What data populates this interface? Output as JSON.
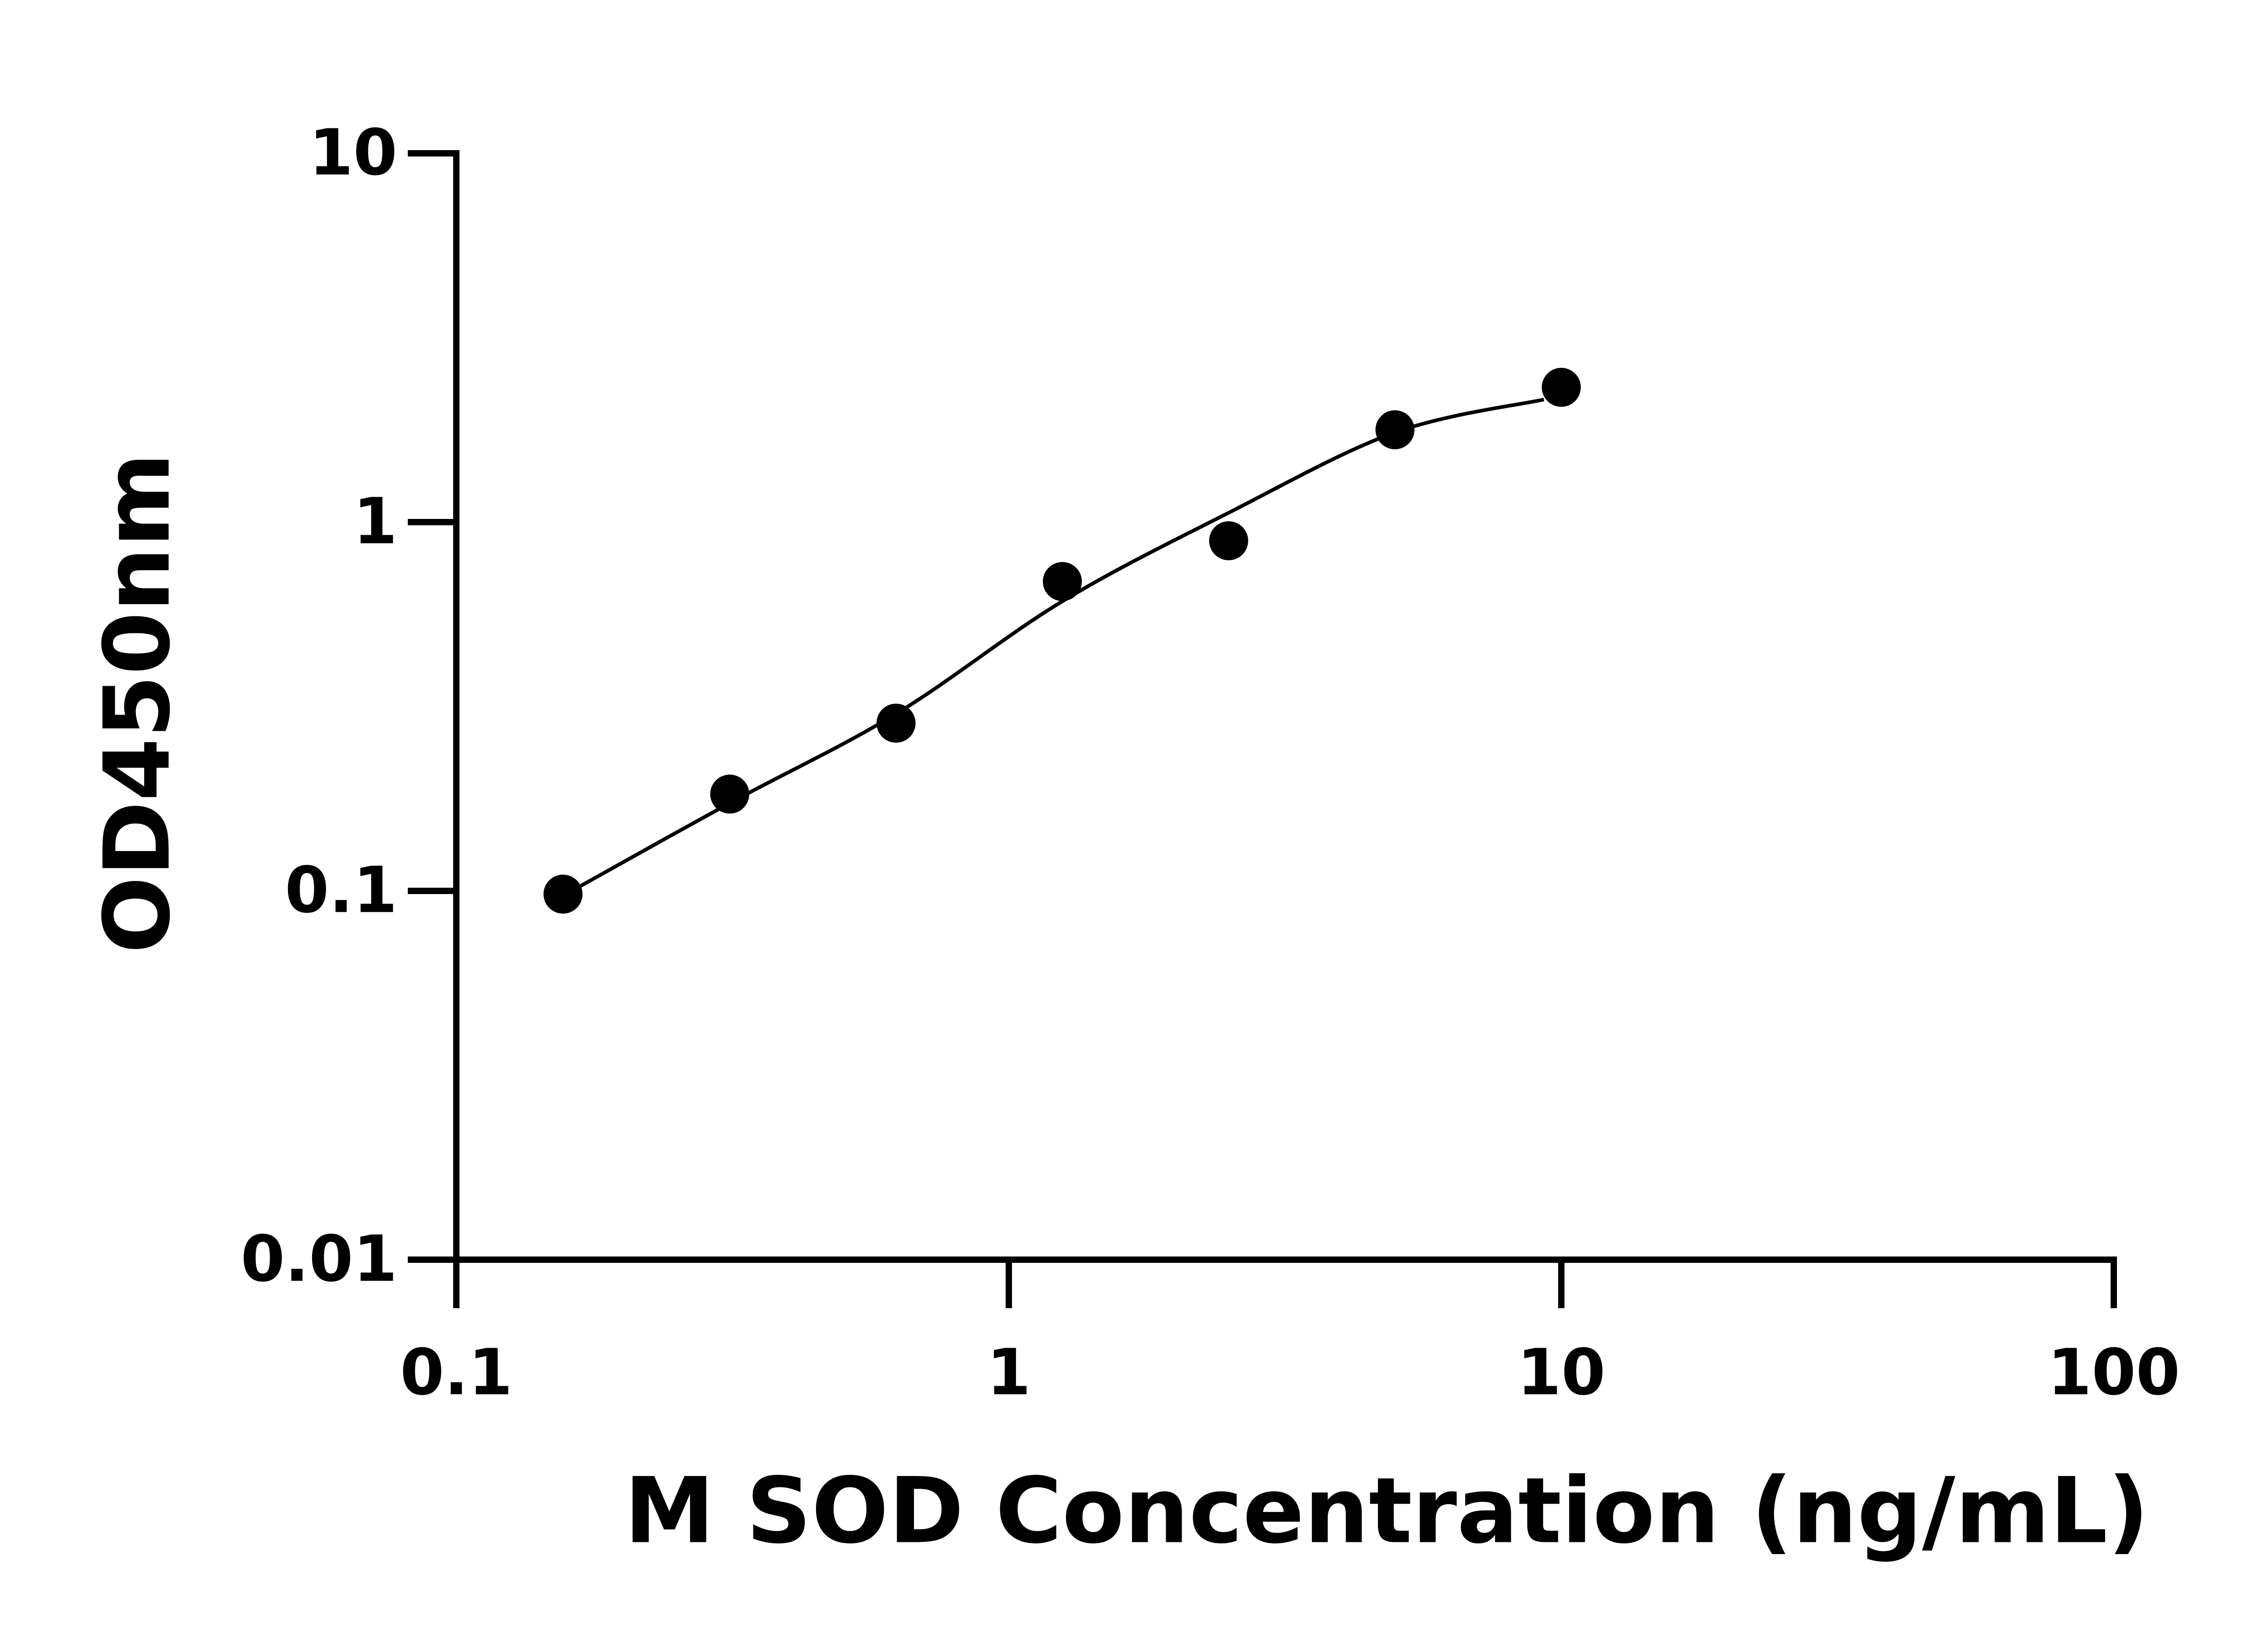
{
  "chart_data": {
    "type": "scatter",
    "x_label": "M SOD Concentration (ng/mL)",
    "y_label": "OD450nm",
    "log_x": true,
    "log_y": true,
    "xlim": [
      0.1,
      100
    ],
    "xticks": [
      0.1,
      1,
      10,
      100
    ],
    "ylim": [
      0.01,
      10
    ],
    "yticks": [
      0.01,
      0.1,
      1,
      10
    ],
    "series": [
      {
        "style": "markers",
        "color": "#000000",
        "x": [
          0.156,
          0.3125,
          0.625,
          1.25,
          2.5,
          5,
          10
        ],
        "values": [
          0.098,
          0.183,
          0.285,
          0.69,
          0.89,
          1.78,
          2.32
        ]
      },
      {
        "style": "line",
        "color": "#000000",
        "x": [
          0.156,
          0.3125,
          0.625,
          1.25,
          2.5,
          5,
          9.3
        ],
        "values": [
          0.097,
          0.173,
          0.302,
          0.61,
          1.06,
          1.75,
          2.15
        ]
      }
    ]
  }
}
